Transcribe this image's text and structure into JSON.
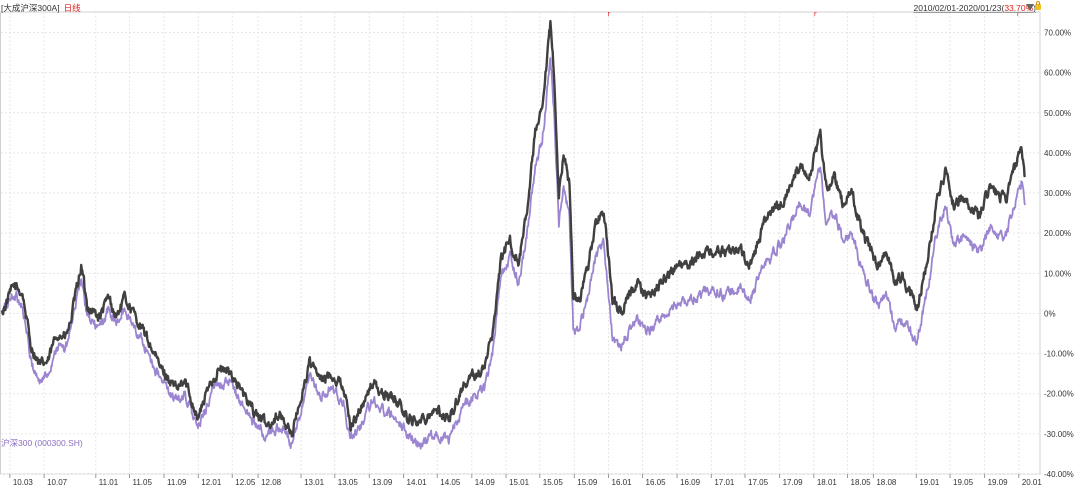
{
  "header": {
    "fund_name": "[大成沪深300A]",
    "period_tag": "日线",
    "range": "2010/02/01-2020/01/23",
    "range_return": "33.70%"
  },
  "legend_label": "沪深300 (000300.SH)",
  "colors": {
    "fund_line": "#404040",
    "index_line": "#9b85d0",
    "grid": "#e6e6e6",
    "accent_red": "#e02020"
  },
  "icons": [
    "dropdown-triangle-icon",
    "lock-icon"
  ],
  "chart_data": {
    "type": "line",
    "title": "",
    "xlabel": "",
    "ylabel": "",
    "ylim": [
      -40,
      70
    ],
    "y_unit": "%",
    "grid": true,
    "y_ticks": [
      70,
      60,
      50,
      40,
      30,
      20,
      10,
      0,
      -10,
      -20,
      -30,
      -40
    ],
    "y_tick_labels": [
      "70.00%",
      "60.00%",
      "50.00%",
      "40.00%",
      "30.00%",
      "20.00%",
      "10.00%",
      "0%",
      "-10.00%",
      "-20.00%",
      "-30.00%",
      "-40.00%"
    ],
    "x_tick_labels": [
      "10.03",
      "10.07",
      "11.01",
      "11.05",
      "11.09",
      "12.01",
      "12.05",
      "12.08",
      "13.01",
      "13.05",
      "13.09",
      "14.01",
      "14.05",
      "14.09",
      "15.01",
      "15.05",
      "15.09",
      "16.01",
      "16.05",
      "16.09",
      "17.01",
      "17.05",
      "17.09",
      "18.01",
      "18.05",
      "18.08",
      "19.01",
      "19.05",
      "19.09",
      "20.01"
    ],
    "x_tick_dates": [
      "2010-03-01",
      "2010-07-01",
      "2011-01-01",
      "2011-05-01",
      "2011-09-01",
      "2012-01-01",
      "2012-05-01",
      "2012-08-01",
      "2013-01-01",
      "2013-05-01",
      "2013-09-01",
      "2014-01-01",
      "2014-05-01",
      "2014-09-01",
      "2015-01-01",
      "2015-05-01",
      "2015-09-01",
      "2016-01-01",
      "2016-05-01",
      "2016-09-01",
      "2017-01-01",
      "2017-05-01",
      "2017-09-01",
      "2018-01-01",
      "2018-05-01",
      "2018-08-01",
      "2019-01-01",
      "2019-05-01",
      "2019-09-01",
      "2020-01-01"
    ],
    "xlim": [
      "2010-02-01",
      "2020-01-23"
    ],
    "markers": [
      {
        "date": "2015-12-28",
        "label": "r"
      },
      {
        "date": "2018-01-01",
        "label": "r"
      },
      {
        "date": "2019-12-25",
        "label": "r"
      }
    ],
    "series": [
      {
        "name": "",
        "color": "#404040",
        "points": [
          [
            "2010-02-01",
            0
          ],
          [
            "2010-03-15",
            7
          ],
          [
            "2010-04-15",
            5
          ],
          [
            "2010-05-15",
            -8
          ],
          [
            "2010-06-15",
            -13
          ],
          [
            "2010-07-15",
            -12
          ],
          [
            "2010-08-15",
            -5
          ],
          [
            "2010-09-15",
            -6
          ],
          [
            "2010-10-01",
            -3
          ],
          [
            "2010-11-10",
            12
          ],
          [
            "2010-12-01",
            2
          ],
          [
            "2011-01-15",
            -1
          ],
          [
            "2011-02-15",
            4
          ],
          [
            "2011-03-15",
            -1
          ],
          [
            "2011-04-15",
            4
          ],
          [
            "2011-05-15",
            0
          ],
          [
            "2011-06-15",
            -4
          ],
          [
            "2011-07-15",
            -8
          ],
          [
            "2011-08-15",
            -13
          ],
          [
            "2011-09-15",
            -16
          ],
          [
            "2011-10-15",
            -19
          ],
          [
            "2011-11-15",
            -17
          ],
          [
            "2011-12-31",
            -26
          ],
          [
            "2012-02-15",
            -17
          ],
          [
            "2012-03-15",
            -14
          ],
          [
            "2012-05-01",
            -15
          ],
          [
            "2012-06-15",
            -21
          ],
          [
            "2012-07-15",
            -24
          ],
          [
            "2012-09-01",
            -28
          ],
          [
            "2012-10-15",
            -25
          ],
          [
            "2012-12-01",
            -30
          ],
          [
            "2013-02-01",
            -12
          ],
          [
            "2013-03-15",
            -17
          ],
          [
            "2013-04-15",
            -15
          ],
          [
            "2013-06-01",
            -18
          ],
          [
            "2013-06-25",
            -28
          ],
          [
            "2013-08-15",
            -22
          ],
          [
            "2013-09-15",
            -17
          ],
          [
            "2013-10-15",
            -20
          ],
          [
            "2013-12-01",
            -21
          ],
          [
            "2014-01-15",
            -26
          ],
          [
            "2014-03-01",
            -27
          ],
          [
            "2014-04-15",
            -24
          ],
          [
            "2014-06-15",
            -26
          ],
          [
            "2014-08-01",
            -18
          ],
          [
            "2014-09-15",
            -15
          ],
          [
            "2014-10-15",
            -14
          ],
          [
            "2014-11-15",
            -4
          ],
          [
            "2014-12-15",
            14
          ],
          [
            "2015-01-15",
            18
          ],
          [
            "2015-02-15",
            12
          ],
          [
            "2015-03-15",
            25
          ],
          [
            "2015-04-15",
            45
          ],
          [
            "2015-05-10",
            50
          ],
          [
            "2015-06-08",
            72
          ],
          [
            "2015-06-20",
            60
          ],
          [
            "2015-07-08",
            30
          ],
          [
            "2015-07-25",
            40
          ],
          [
            "2015-08-15",
            32
          ],
          [
            "2015-08-28",
            5
          ],
          [
            "2015-09-15",
            3
          ],
          [
            "2015-10-15",
            10
          ],
          [
            "2015-11-15",
            22
          ],
          [
            "2015-12-15",
            26
          ],
          [
            "2016-01-15",
            3
          ],
          [
            "2016-02-15",
            0
          ],
          [
            "2016-03-15",
            5
          ],
          [
            "2016-04-15",
            7
          ],
          [
            "2016-05-15",
            4
          ],
          [
            "2016-06-15",
            6
          ],
          [
            "2016-08-15",
            11
          ],
          [
            "2016-10-15",
            12
          ],
          [
            "2016-12-15",
            16
          ],
          [
            "2017-02-15",
            15
          ],
          [
            "2017-04-15",
            16
          ],
          [
            "2017-05-15",
            11
          ],
          [
            "2017-07-15",
            24
          ],
          [
            "2017-09-15",
            28
          ],
          [
            "2017-11-15",
            38
          ],
          [
            "2017-12-15",
            34
          ],
          [
            "2018-01-24",
            44
          ],
          [
            "2018-02-15",
            31
          ],
          [
            "2018-03-15",
            34
          ],
          [
            "2018-04-15",
            27
          ],
          [
            "2018-05-15",
            30
          ],
          [
            "2018-06-15",
            22
          ],
          [
            "2018-07-15",
            17
          ],
          [
            "2018-08-15",
            12
          ],
          [
            "2018-09-15",
            16
          ],
          [
            "2018-10-15",
            8
          ],
          [
            "2018-11-15",
            9
          ],
          [
            "2019-01-03",
            1
          ],
          [
            "2019-02-15",
            16
          ],
          [
            "2019-03-15",
            28
          ],
          [
            "2019-04-15",
            36
          ],
          [
            "2019-05-15",
            27
          ],
          [
            "2019-06-15",
            29
          ],
          [
            "2019-08-15",
            24
          ],
          [
            "2019-09-15",
            31
          ],
          [
            "2019-10-15",
            30
          ],
          [
            "2019-11-15",
            28
          ],
          [
            "2019-12-15",
            36
          ],
          [
            "2020-01-10",
            40
          ],
          [
            "2020-01-23",
            34
          ]
        ]
      },
      {
        "name": "沪深300 (000300.SH)",
        "color": "#9b85d0",
        "points": [
          [
            "2010-02-01",
            0
          ],
          [
            "2010-03-15",
            5
          ],
          [
            "2010-04-15",
            2
          ],
          [
            "2010-05-15",
            -12
          ],
          [
            "2010-06-15",
            -17
          ],
          [
            "2010-07-15",
            -15
          ],
          [
            "2010-08-15",
            -8
          ],
          [
            "2010-09-15",
            -9
          ],
          [
            "2010-10-01",
            -5
          ],
          [
            "2010-11-10",
            9
          ],
          [
            "2010-12-01",
            -1
          ],
          [
            "2011-01-15",
            -4
          ],
          [
            "2011-02-15",
            1
          ],
          [
            "2011-03-15",
            -3
          ],
          [
            "2011-04-15",
            1
          ],
          [
            "2011-05-15",
            -3
          ],
          [
            "2011-06-15",
            -7
          ],
          [
            "2011-07-15",
            -11
          ],
          [
            "2011-08-15",
            -16
          ],
          [
            "2011-09-15",
            -19
          ],
          [
            "2011-10-15",
            -22
          ],
          [
            "2011-11-15",
            -20
          ],
          [
            "2011-12-31",
            -29
          ],
          [
            "2012-02-15",
            -20
          ],
          [
            "2012-03-15",
            -17
          ],
          [
            "2012-05-01",
            -18
          ],
          [
            "2012-06-15",
            -24
          ],
          [
            "2012-07-15",
            -27
          ],
          [
            "2012-09-01",
            -31
          ],
          [
            "2012-10-15",
            -28
          ],
          [
            "2012-12-01",
            -33
          ],
          [
            "2013-02-01",
            -16
          ],
          [
            "2013-03-15",
            -21
          ],
          [
            "2013-04-15",
            -19
          ],
          [
            "2013-06-01",
            -22
          ],
          [
            "2013-06-25",
            -32
          ],
          [
            "2013-08-15",
            -26
          ],
          [
            "2013-09-15",
            -21
          ],
          [
            "2013-10-15",
            -24
          ],
          [
            "2013-12-01",
            -25
          ],
          [
            "2014-01-15",
            -30
          ],
          [
            "2014-03-01",
            -33
          ],
          [
            "2014-04-15",
            -30
          ],
          [
            "2014-06-15",
            -31
          ],
          [
            "2014-08-01",
            -23
          ],
          [
            "2014-09-15",
            -20
          ],
          [
            "2014-10-15",
            -19
          ],
          [
            "2014-11-15",
            -9
          ],
          [
            "2014-12-15",
            10
          ],
          [
            "2015-01-15",
            14
          ],
          [
            "2015-02-15",
            8
          ],
          [
            "2015-03-15",
            19
          ],
          [
            "2015-04-15",
            37
          ],
          [
            "2015-05-10",
            43
          ],
          [
            "2015-06-08",
            64
          ],
          [
            "2015-06-20",
            52
          ],
          [
            "2015-07-08",
            22
          ],
          [
            "2015-07-25",
            32
          ],
          [
            "2015-08-15",
            24
          ],
          [
            "2015-08-28",
            -4
          ],
          [
            "2015-09-15",
            -5
          ],
          [
            "2015-10-15",
            3
          ],
          [
            "2015-11-15",
            14
          ],
          [
            "2015-12-15",
            18
          ],
          [
            "2016-01-15",
            -6
          ],
          [
            "2016-02-15",
            -9
          ],
          [
            "2016-03-15",
            -4
          ],
          [
            "2016-04-15",
            -2
          ],
          [
            "2016-05-15",
            -5
          ],
          [
            "2016-06-15",
            -3
          ],
          [
            "2016-08-15",
            2
          ],
          [
            "2016-10-15",
            3
          ],
          [
            "2016-12-15",
            6
          ],
          [
            "2017-02-15",
            5
          ],
          [
            "2017-04-15",
            6
          ],
          [
            "2017-05-15",
            3
          ],
          [
            "2017-07-15",
            13
          ],
          [
            "2017-09-15",
            18
          ],
          [
            "2017-11-15",
            28
          ],
          [
            "2017-12-15",
            25
          ],
          [
            "2018-01-24",
            37
          ],
          [
            "2018-02-15",
            22
          ],
          [
            "2018-03-15",
            25
          ],
          [
            "2018-04-15",
            18
          ],
          [
            "2018-05-15",
            20
          ],
          [
            "2018-06-15",
            12
          ],
          [
            "2018-07-15",
            7
          ],
          [
            "2018-08-15",
            2
          ],
          [
            "2018-09-15",
            5
          ],
          [
            "2018-10-15",
            -3
          ],
          [
            "2018-11-15",
            -2
          ],
          [
            "2019-01-03",
            -7
          ],
          [
            "2019-02-15",
            8
          ],
          [
            "2019-03-15",
            20
          ],
          [
            "2019-04-15",
            27
          ],
          [
            "2019-05-15",
            17
          ],
          [
            "2019-06-15",
            19
          ],
          [
            "2019-08-15",
            15
          ],
          [
            "2019-09-15",
            21
          ],
          [
            "2019-10-15",
            20
          ],
          [
            "2019-11-15",
            19
          ],
          [
            "2019-12-15",
            27
          ],
          [
            "2020-01-10",
            33
          ],
          [
            "2020-01-23",
            27
          ]
        ]
      }
    ]
  }
}
